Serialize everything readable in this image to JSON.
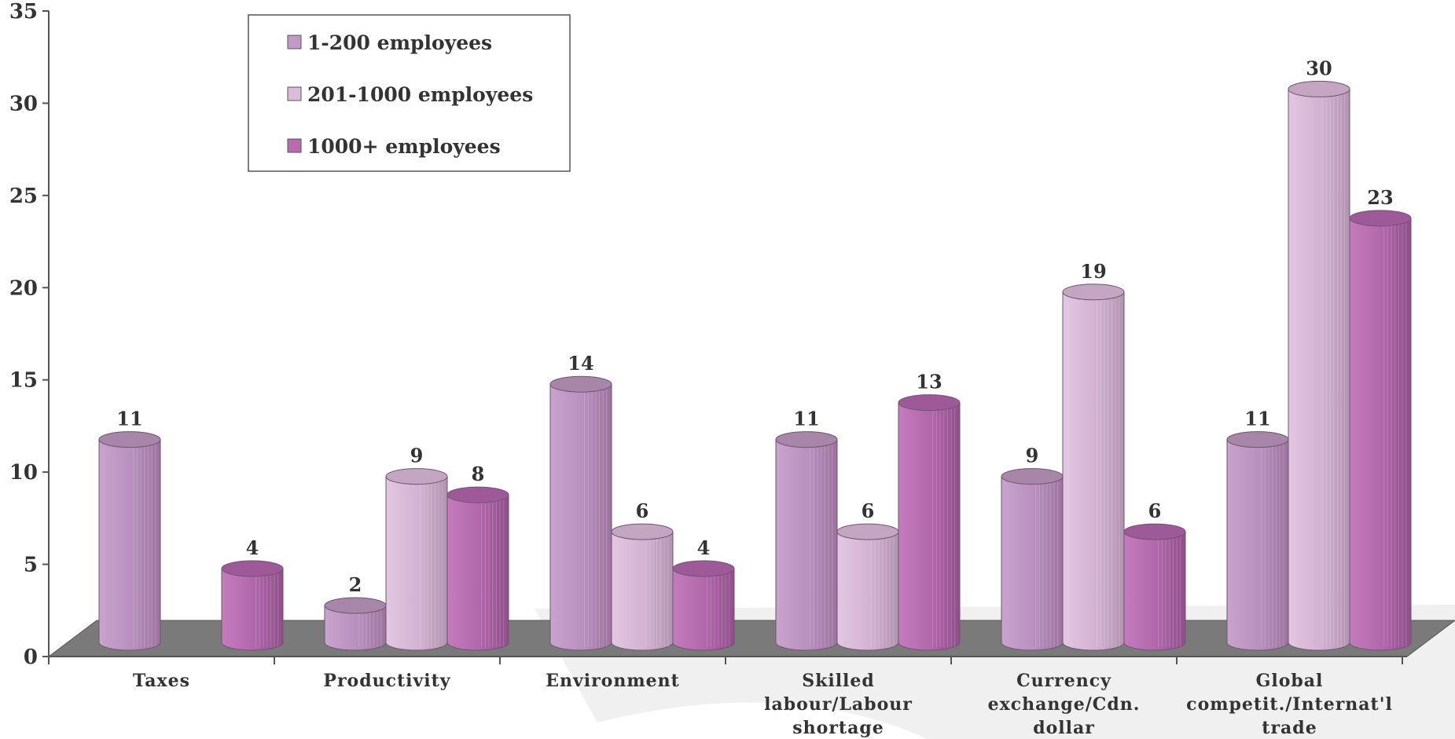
{
  "chart_data": {
    "type": "bar",
    "title": "",
    "xlabel": "",
    "ylabel": "",
    "ylim": [
      0,
      35
    ],
    "yticks": [
      0,
      5,
      10,
      15,
      20,
      25,
      30,
      35
    ],
    "grid": false,
    "legend_position": "top-left",
    "categories": [
      [
        "Taxes"
      ],
      [
        "Productivity"
      ],
      [
        "Environment"
      ],
      [
        "Skilled",
        "labour/Labour",
        "shortage"
      ],
      [
        "Currency",
        "exchange/Cdn.",
        "dollar"
      ],
      [
        "Global",
        "competit./Internat'l",
        "trade"
      ]
    ],
    "series": [
      {
        "name": "1-200 employees",
        "color": "#c39ac7",
        "values": [
          11,
          2,
          14,
          11,
          9,
          11
        ]
      },
      {
        "name": "201-1000 employees",
        "color": "#dcbcdb",
        "values": [
          null,
          9,
          6,
          6,
          19,
          30
        ]
      },
      {
        "name": "1000+ employees",
        "color": "#b96ab2",
        "values": [
          4,
          8,
          4,
          13,
          6,
          23
        ]
      }
    ]
  }
}
